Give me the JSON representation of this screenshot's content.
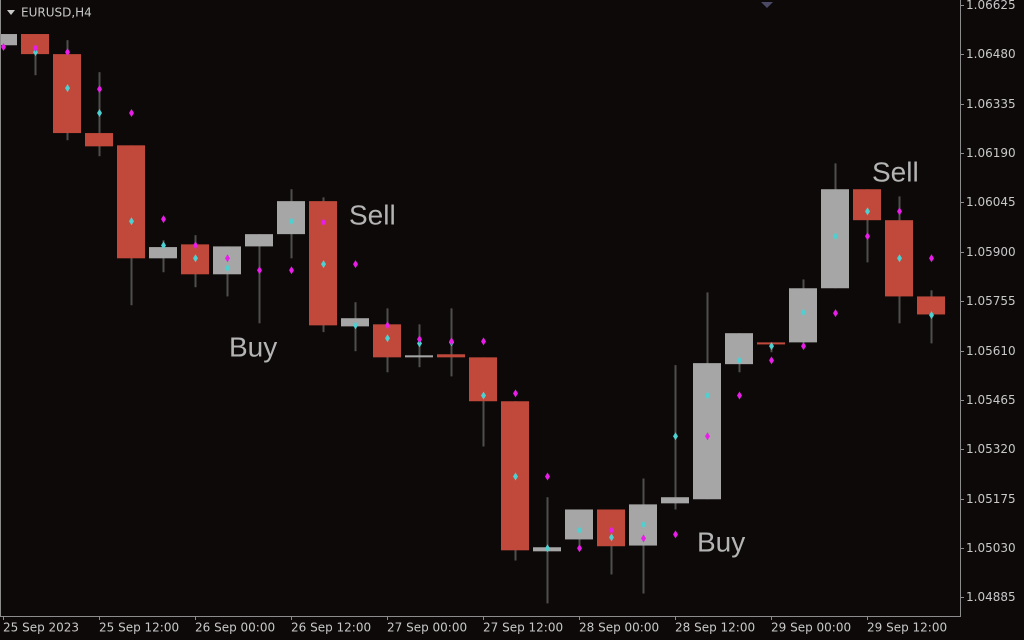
{
  "chart_data": {
    "type": "candlestick",
    "title": "EURUSD,H4",
    "categories": [
      "25 Sep 2023",
      null,
      null,
      "25 Sep 12:00",
      null,
      null,
      "26 Sep 00:00",
      null,
      null,
      "26 Sep 12:00",
      null,
      null,
      "27 Sep 00:00",
      null,
      null,
      "27 Sep 12:00",
      null,
      null,
      "28 Sep 00:00",
      null,
      null,
      "28 Sep 12:00",
      null,
      null,
      "29 Sep 00:00",
      null,
      null,
      "29 Sep 12:00",
      null,
      null
    ],
    "open": [
      1.06507,
      1.0654,
      1.06481,
      1.06249,
      1.06213,
      1.05881,
      1.05922,
      1.05834,
      1.05916,
      1.05952,
      1.06049,
      1.05681,
      1.05687,
      1.0559,
      1.05599,
      1.0559,
      1.05461,
      1.0502,
      1.05055,
      1.05143,
      1.05037,
      1.05161,
      1.05173,
      1.0557,
      1.05634,
      1.05634,
      1.05793,
      1.06084,
      1.05993,
      1.05769
    ],
    "high": [
      1.0654,
      1.0654,
      1.06522,
      1.06428,
      1.06213,
      1.05934,
      1.05949,
      1.05916,
      1.05952,
      1.06084,
      1.0606,
      1.05752,
      1.05734,
      1.05687,
      1.05734,
      1.0559,
      1.05461,
      1.05179,
      1.05143,
      1.05143,
      1.05234,
      1.05567,
      1.05781,
      1.05661,
      1.05634,
      1.05819,
      1.0616,
      1.06084,
      1.06063,
      1.05787
    ],
    "low": [
      1.06507,
      1.06419,
      1.06228,
      1.06181,
      1.05743,
      1.0584,
      1.05796,
      1.05769,
      1.0569,
      1.05881,
      1.05664,
      1.05608,
      1.05546,
      1.05561,
      1.05534,
      1.05328,
      1.04993,
      1.04867,
      1.05037,
      1.04952,
      1.04896,
      1.05143,
      1.05173,
      1.05546,
      1.05605,
      1.05625,
      1.05793,
      1.05869,
      1.0569,
      1.05631
    ],
    "close": [
      1.0654,
      1.06481,
      1.06249,
      1.0621,
      1.05881,
      1.05914,
      1.05834,
      1.05916,
      1.05952,
      1.06049,
      1.05684,
      1.05705,
      1.0559,
      1.05596,
      1.0559,
      1.05461,
      1.05023,
      1.05032,
      1.05143,
      1.05035,
      1.05158,
      1.05179,
      1.05573,
      1.05661,
      1.05628,
      1.05793,
      1.06084,
      1.05993,
      1.05769,
      1.05716
    ],
    "bull_color": "#a6a6a6",
    "bear_color": "#c0493b",
    "wick_color": "#4e4e4e",
    "markers": [
      {
        "color": "#4fd0d0",
        "values": [
          null,
          1.06487,
          1.06381,
          1.06308,
          1.0599,
          1.05919,
          1.05881,
          1.05852,
          null,
          1.0599,
          1.05864,
          1.05684,
          1.05646,
          1.05631,
          1.05634,
          1.05478,
          1.0524,
          1.05029,
          1.05082,
          1.05061,
          1.05099,
          1.05358,
          1.05478,
          1.05581,
          1.05623,
          1.05722,
          1.05946,
          1.06019,
          1.05881,
          1.05714
        ]
      },
      {
        "color": "#e81ee8",
        "values": [
          1.06502,
          1.06499,
          1.06487,
          1.06378,
          1.06308,
          1.05996,
          1.05919,
          1.05881,
          1.05846,
          1.05846,
          1.05987,
          1.05864,
          1.05684,
          1.05643,
          1.05637,
          1.05637,
          1.05484,
          1.0524,
          1.05029,
          1.05082,
          1.05058,
          1.0507,
          1.05358,
          1.05478,
          1.05581,
          1.05623,
          1.0572,
          1.05946,
          1.06019,
          1.05881
        ]
      }
    ],
    "annotations": [
      "Sell",
      "Buy",
      "Sell",
      "Buy"
    ],
    "ylim": [
      1.0483,
      1.0664
    ],
    "yticks": [
      1.06625,
      {
        "value": 1.0648,
        "label": "1.06480"
      },
      1.06335,
      {
        "value": 1.0619,
        "label": "1.06190"
      },
      1.06045,
      {
        "value": 1.059,
        "label": "1.05900"
      },
      1.05755,
      {
        "value": 1.0561,
        "label": "1.05610"
      },
      1.05465,
      {
        "value": 1.0532,
        "label": "1.05320"
      },
      1.05175,
      {
        "value": 1.0503,
        "label": "1.05030"
      },
      1.04885
    ]
  }
}
